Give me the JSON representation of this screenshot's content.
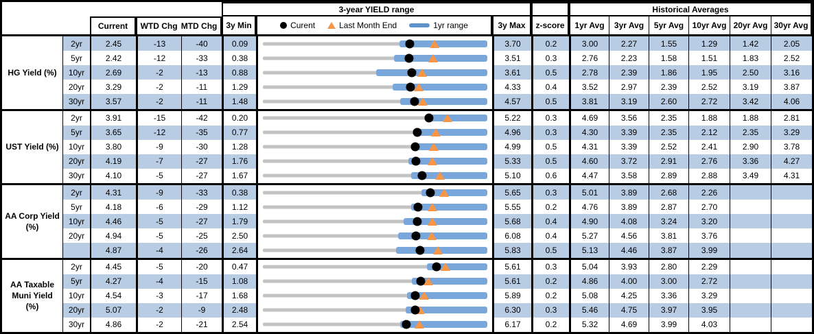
{
  "header": {
    "chart_title": "3-year YIELD range",
    "historical_title": "Historical Averages",
    "cols": {
      "current": "Current",
      "wtd": "WTD Chg",
      "mtd": "MTD Chg",
      "min": "3y Min",
      "max": "3y Max",
      "zscore": "z-score"
    },
    "avg_cols": [
      "1yr Avg",
      "3yr Avg",
      "5yr Avg",
      "10yr Avg",
      "20yr Avg",
      "30yr Avg"
    ],
    "legend": {
      "current": "Curent",
      "last_month_end": "Last Month End",
      "range": "1yr range"
    }
  },
  "colors": {
    "band_blue": "#b8cce4",
    "range_bar_blue": "#7aa7db",
    "legend_dash_blue": "#5e92c9",
    "range_line_gray": "#c3c3c3",
    "current_dot": "#000000",
    "last_month_end_orange": "#f79646",
    "border_black": "#000000"
  },
  "chart_data": {
    "type": "table",
    "title": "3-year YIELD range",
    "legend": [
      "Curent",
      "Last Month End",
      "1yr range"
    ],
    "row_chart_semantics": "gray line = 3y min-max range, blue bar = 1yr range (low to 3y max), black dot = current yield, orange triangle = last month end yield",
    "columns": [
      "Current",
      "WTD Chg",
      "MTD Chg",
      "3y Min",
      "3y Max",
      "z-score",
      "1yr Avg",
      "3yr Avg",
      "5yr Avg",
      "10yr Avg",
      "20yr Avg",
      "30yr Avg"
    ],
    "groups": [
      {
        "label": "HG Yield (%)",
        "rows": [
          {
            "tenor": "2yr",
            "current": "2.45",
            "wtd": "-13",
            "mtd": "-40",
            "min": "0.09",
            "max": "3.70",
            "zscore": "0.2",
            "last_month_end": 2.85,
            "yr1_low": 2.29,
            "avgs": [
              "3.00",
              "2.27",
              "1.55",
              "1.29",
              "1.42",
              "2.05"
            ]
          },
          {
            "tenor": "5yr",
            "current": "2.42",
            "wtd": "-12",
            "mtd": "-33",
            "min": "0.38",
            "max": "3.51",
            "zscore": "0.3",
            "last_month_end": 2.75,
            "yr1_low": 2.21,
            "avgs": [
              "2.76",
              "2.23",
              "1.58",
              "1.51",
              "1.83",
              "2.52"
            ]
          },
          {
            "tenor": "10yr",
            "current": "2.69",
            "wtd": "-2",
            "mtd": "-13",
            "min": "0.88",
            "max": "3.61",
            "zscore": "0.5",
            "last_month_end": 2.82,
            "yr1_low": 2.26,
            "avgs": [
              "2.78",
              "2.39",
              "1.86",
              "1.95",
              "2.50",
              "3.16"
            ]
          },
          {
            "tenor": "20yr",
            "current": "3.29",
            "wtd": "-2",
            "mtd": "-11",
            "min": "1.29",
            "max": "4.33",
            "zscore": "0.4",
            "last_month_end": 3.4,
            "yr1_low": 3.05,
            "avgs": [
              "3.52",
              "2.97",
              "2.39",
              "2.52",
              "3.19",
              "3.87"
            ]
          },
          {
            "tenor": "30yr",
            "current": "3.57",
            "wtd": "-2",
            "mtd": "-11",
            "min": "1.48",
            "max": "4.57",
            "zscore": "0.5",
            "last_month_end": 3.68,
            "yr1_low": 3.37,
            "avgs": [
              "3.81",
              "3.19",
              "2.60",
              "2.72",
              "3.42",
              "4.06"
            ]
          }
        ]
      },
      {
        "label": "UST Yield (%)",
        "rows": [
          {
            "tenor": "2yr",
            "current": "3.91",
            "wtd": "-15",
            "mtd": "-42",
            "min": "0.20",
            "max": "5.22",
            "zscore": "0.3",
            "last_month_end": 4.33,
            "yr1_low": 3.91,
            "avgs": [
              "4.69",
              "3.56",
              "2.35",
              "1.88",
              "1.88",
              "2.81"
            ]
          },
          {
            "tenor": "5yr",
            "current": "3.65",
            "wtd": "-12",
            "mtd": "-35",
            "min": "0.77",
            "max": "4.96",
            "zscore": "0.3",
            "last_month_end": 4.0,
            "yr1_low": 3.65,
            "avgs": [
              "4.30",
              "3.39",
              "2.35",
              "2.12",
              "2.35",
              "3.29"
            ]
          },
          {
            "tenor": "10yr",
            "current": "3.80",
            "wtd": "-9",
            "mtd": "-30",
            "min": "1.28",
            "max": "4.99",
            "zscore": "0.5",
            "last_month_end": 4.1,
            "yr1_low": 3.77,
            "avgs": [
              "4.31",
              "3.39",
              "2.52",
              "2.41",
              "2.90",
              "3.78"
            ]
          },
          {
            "tenor": "20yr",
            "current": "4.19",
            "wtd": "-7",
            "mtd": "-27",
            "min": "1.76",
            "max": "5.33",
            "zscore": "0.5",
            "last_month_end": 4.46,
            "yr1_low": 4.07,
            "avgs": [
              "4.60",
              "3.72",
              "2.91",
              "2.76",
              "3.36",
              "4.27"
            ]
          },
          {
            "tenor": "30yr",
            "current": "4.10",
            "wtd": "-5",
            "mtd": "-27",
            "min": "1.67",
            "max": "5.10",
            "zscore": "0.6",
            "last_month_end": 4.37,
            "yr1_low": 3.93,
            "avgs": [
              "4.47",
              "3.58",
              "2.89",
              "2.88",
              "3.49",
              "4.31"
            ]
          }
        ]
      },
      {
        "label": "AA Corp Yield\n(%)",
        "rows": [
          {
            "tenor": "2yr",
            "current": "4.31",
            "wtd": "-9",
            "mtd": "-33",
            "min": "0.38",
            "max": "5.65",
            "zscore": "0.3",
            "last_month_end": 4.64,
            "yr1_low": 4.1,
            "avgs": [
              "5.01",
              "3.89",
              "2.68",
              "2.26",
              "",
              ""
            ]
          },
          {
            "tenor": "5yr",
            "current": "4.18",
            "wtd": "-6",
            "mtd": "-29",
            "min": "1.12",
            "max": "5.55",
            "zscore": "0.2",
            "last_month_end": 4.47,
            "yr1_low": 4.05,
            "avgs": [
              "4.76",
              "3.89",
              "2.87",
              "2.70",
              "",
              ""
            ]
          },
          {
            "tenor": "10yr",
            "current": "4.46",
            "wtd": "-5",
            "mtd": "-27",
            "min": "1.79",
            "max": "5.68",
            "zscore": "0.4",
            "last_month_end": 4.73,
            "yr1_low": 4.23,
            "avgs": [
              "4.90",
              "4.08",
              "3.24",
              "3.20",
              "",
              ""
            ]
          },
          {
            "tenor": "20yr",
            "current": "4.94",
            "wtd": "-5",
            "mtd": "-25",
            "min": "2.50",
            "max": "6.08",
            "zscore": "0.4",
            "last_month_end": 5.19,
            "yr1_low": 4.66,
            "avgs": [
              "5.27",
              "4.56",
              "3.81",
              "3.76",
              "",
              ""
            ]
          },
          {
            "tenor": "",
            "current": "4.87",
            "wtd": "-4",
            "mtd": "-26",
            "min": "2.64",
            "max": "5.83",
            "zscore": "0.5",
            "last_month_end": 5.13,
            "yr1_low": 4.53,
            "avgs": [
              "5.13",
              "4.46",
              "3.87",
              "3.99",
              "",
              ""
            ]
          }
        ]
      },
      {
        "label": "AA Taxable\nMuni Yield\n(%)",
        "rows": [
          {
            "tenor": "2yr",
            "current": "4.45",
            "wtd": "-5",
            "mtd": "-20",
            "min": "0.47",
            "max": "5.61",
            "zscore": "0.3",
            "last_month_end": 4.65,
            "yr1_low": 4.23,
            "avgs": [
              "5.04",
              "3.93",
              "2.80",
              "2.29",
              "",
              ""
            ]
          },
          {
            "tenor": "5yr",
            "current": "4.27",
            "wtd": "-4",
            "mtd": "-15",
            "min": "1.08",
            "max": "5.61",
            "zscore": "0.2",
            "last_month_end": 4.42,
            "yr1_low": 4.08,
            "avgs": [
              "4.86",
              "4.00",
              "3.00",
              "2.72",
              "",
              ""
            ]
          },
          {
            "tenor": "10yr",
            "current": "4.54",
            "wtd": "-3",
            "mtd": "-17",
            "min": "1.68",
            "max": "5.89",
            "zscore": "0.2",
            "last_month_end": 4.71,
            "yr1_low": 4.38,
            "avgs": [
              "5.08",
              "4.25",
              "3.36",
              "3.29",
              "",
              ""
            ]
          },
          {
            "tenor": "20yr",
            "current": "5.07",
            "wtd": "-2",
            "mtd": "-9",
            "min": "2.48",
            "max": "6.30",
            "zscore": "0.3",
            "last_month_end": 5.16,
            "yr1_low": 4.91,
            "avgs": [
              "5.46",
              "4.75",
              "3.97",
              "3.95",
              "",
              ""
            ]
          },
          {
            "tenor": "30yr",
            "current": "4.86",
            "wtd": "-2",
            "mtd": "-21",
            "min": "2.54",
            "max": "6.17",
            "zscore": "0.2",
            "last_month_end": 5.07,
            "yr1_low": 4.76,
            "avgs": [
              "5.32",
              "4.69",
              "3.99",
              "4.03",
              "",
              ""
            ]
          }
        ]
      }
    ]
  }
}
